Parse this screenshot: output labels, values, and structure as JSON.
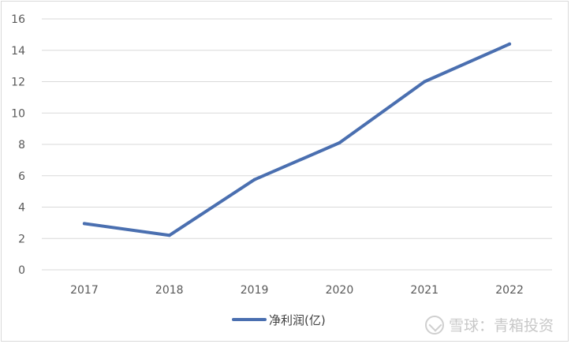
{
  "chart_data": {
    "type": "line",
    "title": "",
    "xlabel": "",
    "ylabel": "",
    "categories": [
      "2017",
      "2018",
      "2019",
      "2020",
      "2021",
      "2022"
    ],
    "series": [
      {
        "name": "净利润(亿)",
        "values": [
          2.95,
          2.2,
          5.75,
          8.1,
          12.0,
          14.4
        ],
        "color": "#4a6fb0"
      }
    ],
    "ylim": [
      0,
      16
    ],
    "yticks": [
      0,
      2,
      4,
      6,
      8,
      10,
      12,
      14,
      16
    ],
    "grid": true,
    "legend_position": "bottom"
  },
  "watermark": {
    "text": "雪球：青箱投资",
    "icon": "snowball-logo-icon"
  }
}
